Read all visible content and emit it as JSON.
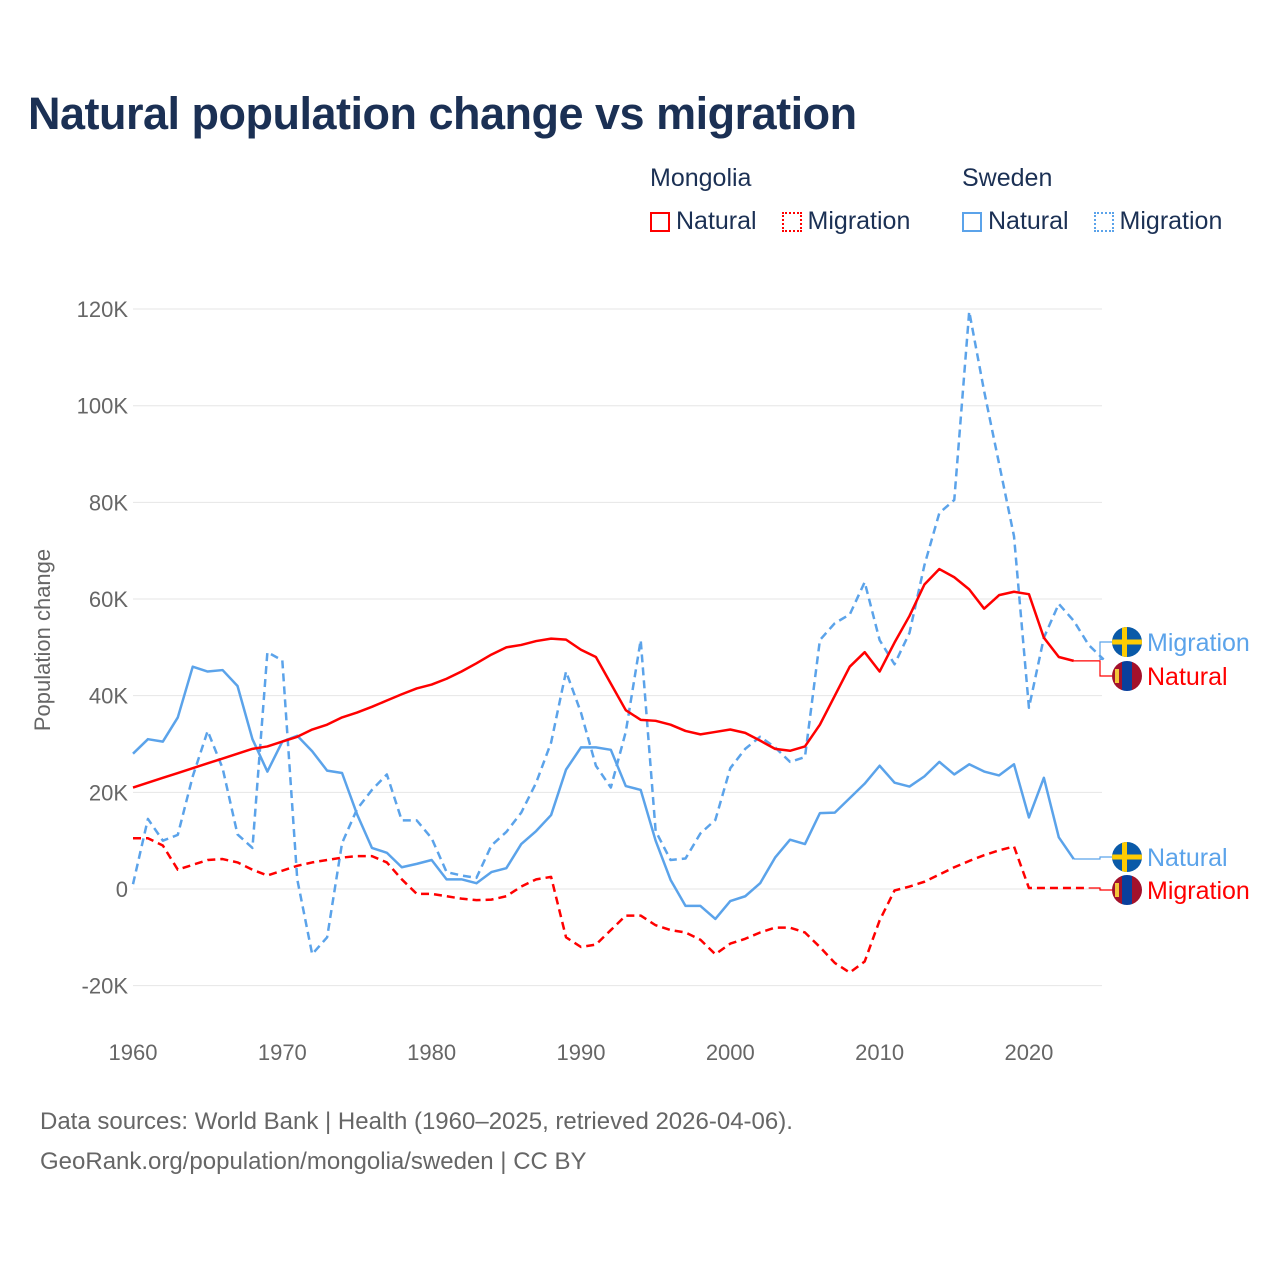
{
  "title": "Natural population change vs migration",
  "legend": {
    "groups": [
      {
        "name": "Mongolia",
        "items": [
          {
            "label": "Natural",
            "style": "solid",
            "color": "#ff0000"
          },
          {
            "label": "Migration",
            "style": "dotted",
            "color": "#ff0000"
          }
        ]
      },
      {
        "name": "Sweden",
        "items": [
          {
            "label": "Natural",
            "style": "solid",
            "color": "#5ba3ea"
          },
          {
            "label": "Migration",
            "style": "dotted",
            "color": "#5ba3ea"
          }
        ]
      }
    ]
  },
  "footer": {
    "line1": "Data sources: World Bank | Health (1960–2025, retrieved 2026-04-06).",
    "line2": "GeoRank.org/population/mongolia/sweden | CC BY"
  },
  "chart_data": {
    "type": "line",
    "title": "Natural population change vs migration",
    "xlabel": "",
    "ylabel": "Population change",
    "xlim": [
      1960,
      2025
    ],
    "ylim": [
      -20000,
      120000
    ],
    "x_ticks": [
      1960,
      1970,
      1980,
      1990,
      2000,
      2010,
      2020
    ],
    "y_ticks": [
      {
        "value": -20000,
        "label": "-20K"
      },
      {
        "value": 0,
        "label": "0"
      },
      {
        "value": 20000,
        "label": "20K"
      },
      {
        "value": 40000,
        "label": "40K"
      },
      {
        "value": 60000,
        "label": "60K"
      },
      {
        "value": 80000,
        "label": "80K"
      },
      {
        "value": 100000,
        "label": "100K"
      },
      {
        "value": 120000,
        "label": "120K"
      }
    ],
    "grid": true,
    "x_start": 1960,
    "series": [
      {
        "name": "Mongolia Natural",
        "end_label": "Natural",
        "country": "mongolia",
        "color": "#ff0000",
        "dashed": false,
        "values": [
          21,
          22,
          23,
          24,
          25,
          26,
          27,
          28,
          29,
          29.5,
          30.5,
          31.5,
          33,
          34,
          35.5,
          36.5,
          37.7,
          39,
          40.3,
          41.5,
          42.3,
          43.5,
          45,
          46.7,
          48.5,
          50,
          50.5,
          51.3,
          51.8,
          51.6,
          49.5,
          48,
          42.5,
          37,
          35,
          34.8,
          34,
          32.7,
          32,
          32.5,
          33,
          32.3,
          30.7,
          29,
          28.6,
          29.5,
          34,
          40,
          46,
          49,
          45,
          51,
          56.5,
          63,
          66.2,
          64.5,
          62,
          58,
          60.8,
          61.5,
          61,
          52,
          48,
          47.2
        ]
      },
      {
        "name": "Mongolia Migration",
        "end_label": "Migration",
        "country": "mongolia",
        "color": "#ff0000",
        "dashed": true,
        "values": [
          10.5,
          10.5,
          9,
          4,
          5,
          6,
          6.2,
          5.5,
          4,
          2.8,
          3.8,
          4.8,
          5.5,
          6,
          6.5,
          6.8,
          6.8,
          5.5,
          2,
          -1,
          -1,
          -1.5,
          -2,
          -2.3,
          -2.2,
          -1.5,
          0.5,
          2,
          2.5,
          -10,
          -12,
          -11.5,
          -8.5,
          -5.5,
          -5.5,
          -7.5,
          -8.5,
          -9,
          -10.5,
          -13.5,
          -11.3,
          -10.3,
          -9,
          -8,
          -8,
          -9,
          -12,
          -15.3,
          -17.3,
          -15,
          -6.5,
          -0.3,
          0.5,
          1.5,
          3,
          4.5,
          5.8,
          7,
          8,
          8.8,
          0.2,
          0.2,
          0.2,
          0.2,
          0.2
        ]
      },
      {
        "name": "Sweden Natural",
        "end_label": "Natural",
        "country": "sweden",
        "color": "#5ba3ea",
        "dashed": false,
        "values": [
          28,
          31,
          30.5,
          35.5,
          46,
          45,
          45.3,
          42,
          31,
          24.3,
          30.5,
          31.7,
          28.5,
          24.5,
          24,
          15.5,
          8.5,
          7.5,
          4.5,
          5.2,
          6,
          2,
          2,
          1.2,
          3.5,
          4.3,
          9.3,
          12,
          15.3,
          24.7,
          29.3,
          29.3,
          28.8,
          21.3,
          20.5,
          10,
          1.9,
          -3.5,
          -3.5,
          -6.2,
          -2.5,
          -1.5,
          1.2,
          6.5,
          10.2,
          9.3,
          15.7,
          15.8,
          18.8,
          21.8,
          25.5,
          22,
          21.2,
          23.3,
          26.3,
          23.7,
          25.8,
          24.3,
          23.5,
          25.8,
          14.8,
          23,
          10.7,
          6.2
        ]
      },
      {
        "name": "Sweden Migration",
        "end_label": "Migration",
        "country": "sweden",
        "color": "#5ba3ea",
        "dashed": true,
        "values": [
          1,
          14.5,
          10,
          11.2,
          23.3,
          32.7,
          25,
          11.3,
          8.5,
          49,
          47.3,
          2,
          -13.5,
          -10,
          9.5,
          16.5,
          20.5,
          23.7,
          14.2,
          14.2,
          10.5,
          3.5,
          2.8,
          2.3,
          9,
          11.8,
          15.8,
          22,
          30.3,
          45,
          36.5,
          25.5,
          21,
          32.5,
          51.5,
          12,
          6,
          6.3,
          11.5,
          14.3,
          25,
          29,
          31.5,
          29.3,
          26.3,
          27.3,
          51.5,
          55,
          56.8,
          63.5,
          51.5,
          46.5,
          53,
          67,
          77.8,
          80.5,
          119.5,
          103,
          88,
          73,
          37.5,
          52,
          59,
          55.5,
          50.5,
          47.5
        ]
      }
    ],
    "value_unit": "thousands"
  }
}
